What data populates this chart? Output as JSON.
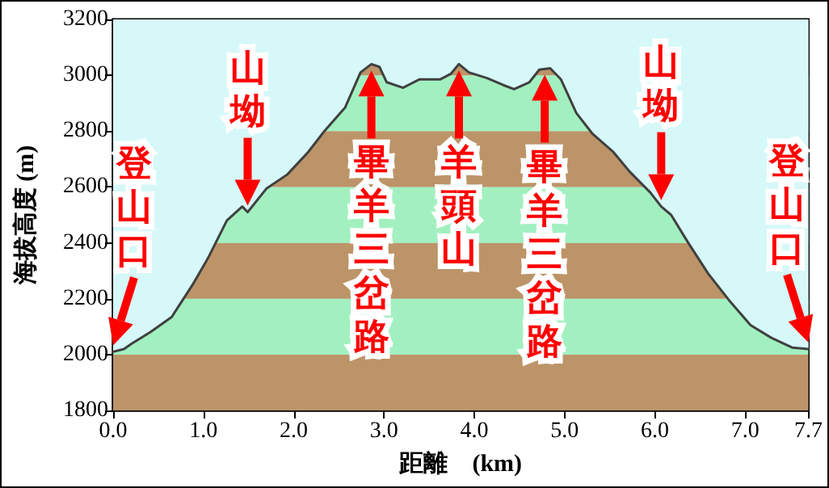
{
  "chart_data": {
    "type": "line",
    "xlabel": "距離　(km)",
    "ylabel": "海拔高度 (m)",
    "x": [
      0,
      0.12,
      0.21,
      0.41,
      0.65,
      0.88,
      1.05,
      1.26,
      1.43,
      1.49,
      1.7,
      1.93,
      2.16,
      2.34,
      2.57,
      2.74,
      2.86,
      2.95,
      3.03,
      3.21,
      3.39,
      3.62,
      3.74,
      3.83,
      3.94,
      4.14,
      4.32,
      4.44,
      4.61,
      4.72,
      4.84,
      4.96,
      5.13,
      5.31,
      5.54,
      5.72,
      5.95,
      6.07,
      6.18,
      6.36,
      6.59,
      6.82,
      7.06,
      7.29,
      7.52,
      7.7
    ],
    "series": [
      {
        "color": "#404040",
        "values": [
          2010,
          2020,
          2040,
          2080,
          2135,
          2250,
          2345,
          2480,
          2530,
          2510,
          2595,
          2645,
          2725,
          2800,
          2885,
          3010,
          3040,
          3030,
          2975,
          2955,
          2985,
          2985,
          3005,
          3040,
          3010,
          2990,
          2965,
          2950,
          2975,
          3020,
          3025,
          2985,
          2865,
          2790,
          2725,
          2655,
          2580,
          2530,
          2500,
          2405,
          2290,
          2195,
          2105,
          2060,
          2025,
          2020
        ]
      }
    ],
    "xlim": [
      0,
      7.7
    ],
    "ylim": [
      1800,
      3200
    ],
    "xticks": [
      {
        "value": 0,
        "label": "0.0"
      },
      {
        "value": 1,
        "label": "1.0"
      },
      {
        "value": 2,
        "label": "2.0"
      },
      {
        "value": 3,
        "label": "3.0"
      },
      {
        "value": 4,
        "label": "4.0"
      },
      {
        "value": 5,
        "label": "5.0"
      },
      {
        "value": 6,
        "label": "6.0"
      },
      {
        "value": 7,
        "label": "7.0"
      },
      {
        "value": 7.7,
        "label": "7.7"
      }
    ],
    "yticks": [
      1800,
      2000,
      2200,
      2400,
      2600,
      2800,
      3000,
      3200
    ],
    "bands": [
      {
        "axis": "y",
        "from": 1800,
        "to": 2000,
        "color": "#bc9468"
      },
      {
        "axis": "y",
        "from": 2000,
        "to": 2200,
        "color": "#a2f0c0"
      },
      {
        "axis": "y",
        "from": 2200,
        "to": 2400,
        "color": "#bc9468"
      },
      {
        "axis": "y",
        "from": 2400,
        "to": 2600,
        "color": "#a2f0c0"
      },
      {
        "axis": "y",
        "from": 2600,
        "to": 2800,
        "color": "#bc9468"
      },
      {
        "axis": "y",
        "from": 2800,
        "to": 3000,
        "color": "#a2f0c0"
      },
      {
        "axis": "y",
        "from": 3000,
        "to": 3200,
        "color": "#bc9468"
      }
    ],
    "annotations": [
      {
        "text": "登山口",
        "x": 0,
        "y": 2010
      },
      {
        "text": "山坳",
        "x": 1.49,
        "y": 2510
      },
      {
        "text": "畢羊三岔路",
        "x": 2.86,
        "y": 3040
      },
      {
        "text": "羊頭山",
        "x": 3.83,
        "y": 3040
      },
      {
        "text": "畢羊三岔路",
        "x": 4.78,
        "y": 3025
      },
      {
        "text": "山坳",
        "x": 6.07,
        "y": 2530
      },
      {
        "text": "登山口",
        "x": 7.7,
        "y": 2020
      }
    ],
    "grid": false,
    "marker": "none",
    "line_style": "solid"
  }
}
